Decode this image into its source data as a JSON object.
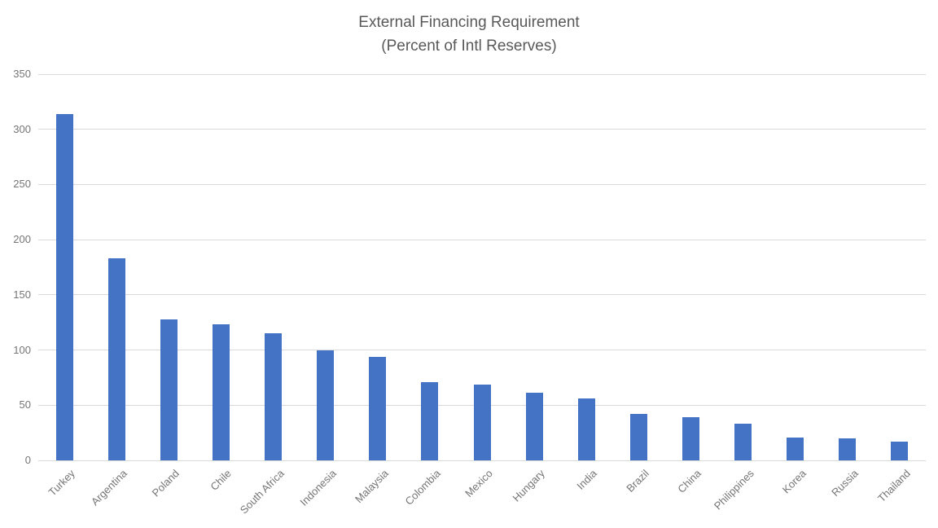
{
  "chart_data": {
    "type": "bar",
    "title": "External Financing Requirement",
    "subtitle": "(Percent of Intl Reserves)",
    "categories": [
      "Turkey",
      "Argentina",
      "Poland",
      "Chile",
      "South Africa",
      "Indonesia",
      "Malaysia",
      "Colombia",
      "Mexico",
      "Hungary",
      "India",
      "Brazil",
      "China",
      "Philippines",
      "Korea",
      "Russia",
      "Thailand"
    ],
    "values": [
      314,
      183,
      128,
      123,
      115,
      100,
      94,
      71,
      69,
      61,
      56,
      42,
      39,
      33,
      21,
      20,
      17
    ],
    "xlabel": "",
    "ylabel": "",
    "ylim": [
      0,
      350
    ],
    "yticks": [
      0,
      50,
      100,
      150,
      200,
      250,
      300,
      350
    ],
    "grid": true,
    "legend": false,
    "colors": {
      "bar": "#4472c4",
      "gridline": "#d9d9d9",
      "axis_text": "#757575",
      "title_text": "#595959"
    }
  }
}
